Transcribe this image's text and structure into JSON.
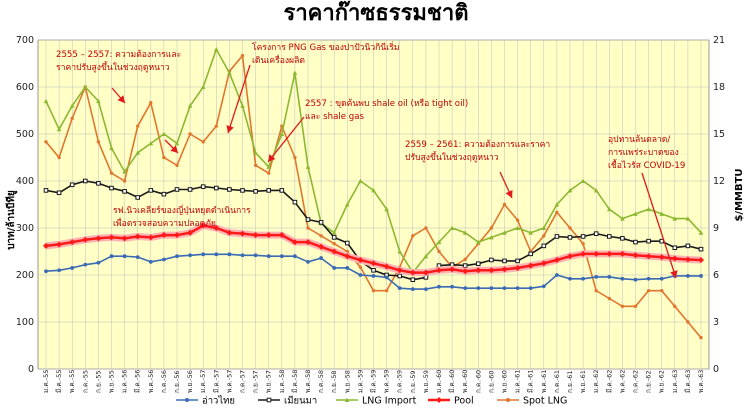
{
  "chart_data": {
    "type": "line",
    "title": "ราคาก๊าซธรรมชาติ",
    "ylabel_left": "บาท/ล้านบีทียู",
    "ylabel_right": "$/MMBTU",
    "ylim_left": [
      0,
      700
    ],
    "ylim_right": [
      0,
      21
    ],
    "yticks_left": [
      "0",
      "100",
      "200",
      "300",
      "400",
      "500",
      "600",
      "700"
    ],
    "yticks_right": [
      "0",
      "3",
      "6",
      "9",
      "12",
      "15",
      "18",
      "21"
    ],
    "x": [
      "ม.ค.-55",
      "มี.ค.-55",
      "พ.ค.-55",
      "ก.ค.-55",
      "ก.ย.-55",
      "พ.ย.-55",
      "ม.ค.-56",
      "มี.ค.-56",
      "พ.ค.-56",
      "ก.ค.-56",
      "ก.ย.-56",
      "พ.ย.-56",
      "ม.ค.-57",
      "มี.ค.-57",
      "พ.ค.-57",
      "ก.ค.-57",
      "ก.ย.-57",
      "พ.ย.-57",
      "ม.ค.-58",
      "มี.ค.-58",
      "พ.ค.-58",
      "ก.ค.-58",
      "ก.ย.-58",
      "พ.ย.-58",
      "ม.ค.-59",
      "มี.ค.-59",
      "พ.ค.-59",
      "ก.ค.-59",
      "ก.ย.-59",
      "พ.ย.-59",
      "ม.ค.-60",
      "มี.ค.-60",
      "พ.ค.-60",
      "ก.ค.-60",
      "ก.ย.-60",
      "พ.ย.-60",
      "ม.ค.-61",
      "มี.ค.-61",
      "พ.ค.-61",
      "ก.ค.-61",
      "ก.ย.-61",
      "พ.ย.-61",
      "ม.ค.-62",
      "มี.ค.-62",
      "พ.ค.-62",
      "ก.ค.-62",
      "ก.ย.-62",
      "พ.ย.-62",
      "ม.ค.-63",
      "มี.ค.-63",
      "พ.ค.-63"
    ],
    "series": [
      {
        "name": "อ่าวไทย",
        "color": "#3b6bb5",
        "axis": "left",
        "values": [
          208,
          210,
          215,
          222,
          226,
          240,
          240,
          238,
          228,
          233,
          240,
          242,
          244,
          244,
          244,
          242,
          242,
          240,
          240,
          240,
          228,
          236,
          215,
          215,
          200,
          198,
          195,
          172,
          170,
          170,
          175,
          175,
          172,
          172,
          172,
          172,
          172,
          172,
          176,
          200,
          192,
          192,
          196,
          196,
          192,
          190,
          192,
          192,
          198,
          198,
          198
        ]
      },
      {
        "name": "เมียนมา",
        "color": "#1a1a1a",
        "axis": "left",
        "values": [
          380,
          375,
          392,
          400,
          395,
          385,
          378,
          365,
          380,
          372,
          382,
          382,
          388,
          385,
          382,
          380,
          378,
          380,
          380,
          355,
          318,
          312,
          280,
          268,
          230,
          210,
          200,
          198,
          190,
          195,
          220,
          222,
          220,
          224,
          232,
          230,
          230,
          245,
          262,
          282,
          280,
          282,
          288,
          282,
          278,
          270,
          272,
          272,
          258,
          262,
          255
        ]
      },
      {
        "name": "LNG Import",
        "color": "#8cb832",
        "axis": "left",
        "values": [
          570,
          510,
          560,
          600,
          570,
          470,
          420,
          460,
          480,
          500,
          480,
          560,
          600,
          680,
          630,
          560,
          460,
          430,
          500,
          630,
          430,
          310,
          290,
          350,
          400,
          380,
          340,
          250,
          205,
          240,
          270,
          300,
          290,
          270,
          280,
          290,
          300,
          290,
          300,
          350,
          380,
          400,
          380,
          340,
          320,
          330,
          340,
          330,
          320,
          320,
          290
        ]
      },
      {
        "name": "Pool",
        "color": "#ff1a1a",
        "axis": "left",
        "values": [
          262,
          265,
          270,
          275,
          278,
          280,
          278,
          282,
          280,
          285,
          285,
          290,
          305,
          300,
          290,
          288,
          285,
          285,
          285,
          270,
          270,
          260,
          250,
          240,
          232,
          225,
          218,
          210,
          205,
          205,
          210,
          212,
          208,
          210,
          210,
          212,
          215,
          220,
          225,
          232,
          240,
          245,
          245,
          245,
          245,
          242,
          240,
          238,
          235,
          233,
          232
        ]
      },
      {
        "name": "Spot LNG",
        "color": "#e0772f",
        "axis": "right",
        "values": [
          14.5,
          13.5,
          16.0,
          18.0,
          14.5,
          12.5,
          12.0,
          15.5,
          17.0,
          13.5,
          13.0,
          15.0,
          14.5,
          15.5,
          19.0,
          20.0,
          13.0,
          12.5,
          15.5,
          13.5,
          9.0,
          8.5,
          8.0,
          7.5,
          6.5,
          5.0,
          5.0,
          6.5,
          8.5,
          9.0,
          7.5,
          6.5,
          7.0,
          8.0,
          9.0,
          10.5,
          9.5,
          7.5,
          8.5,
          10.0,
          9.0,
          8.0,
          5.0,
          4.5,
          4.0,
          4.0,
          5.0,
          5.0,
          4.0,
          3.0,
          2.0
        ]
      }
    ],
    "annotations": [
      "2555 – 2557: ความต้องการและ",
      "ราคาปรับสูงขึ้นในช่วงฤดูหนาว",
      "โครงการ PNG Gas ของปาปัวนิวกินีเริ่ม",
      "เดินเครื่องผลิต",
      "2557 : ขุดค้นพบ shale oil (หรือ tight oil)",
      "และ shale gas",
      "2559 – 2561: ความต้องการและราคา",
      "ปรับสูงขึ้นในช่วงฤดูหนาว",
      "รฟ.นิวเคลียร์ของญี่ปุ่นหยุดดำเนินการ",
      "เพื่อตรวจสอบความปลอดภัย",
      "อุปทานล้นตลาด/",
      "การแพร่ระบาดของ",
      "เชื้อไวรัส COVID-19"
    ],
    "grid": true,
    "legend_position": "bottom",
    "colors": {
      "plot_bg": "#ffffc6",
      "grid": "#bfbfbf",
      "annotation": "#c00000",
      "arrow": "#e31a1c"
    }
  }
}
